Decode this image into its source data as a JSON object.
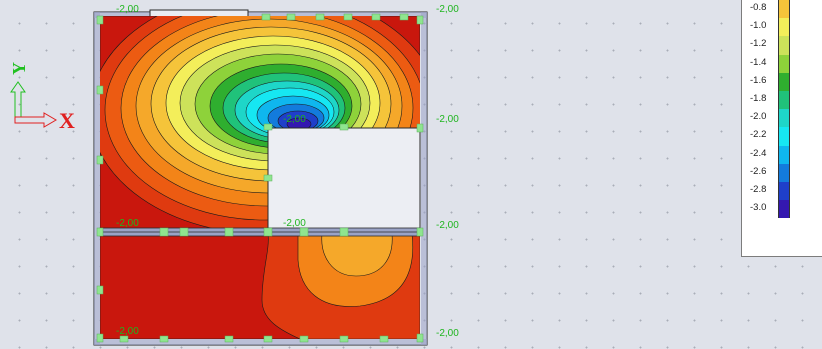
{
  "colors": {
    "background": "#dfe2ea",
    "slab_outline": "#2a2a2a",
    "support_marker": "#8fe58f",
    "dimension_text": "#1fb51f",
    "axis_x": "#e02020",
    "axis_y": "#20c020"
  },
  "axes": {
    "x_label": "X",
    "y_label": "Y"
  },
  "dimensions": {
    "top_left": "-2,00",
    "right_1": "-2,00",
    "right_2": "-2,00",
    "right_3": "-2,00",
    "right_4": "-2,00",
    "inner_top": "-2,00",
    "mid_left": "-2,00",
    "mid_center": "-2,00",
    "bottom_left": "-2,00"
  },
  "legend": {
    "items": [
      {
        "label": "-0.8",
        "color": "#f5c43a"
      },
      {
        "label": "-1.0",
        "color": "#f3ee5a"
      },
      {
        "label": "-1.2",
        "color": "#cde25a"
      },
      {
        "label": "-1.4",
        "color": "#8ed23a"
      },
      {
        "label": "-1.6",
        "color": "#2fae2f"
      },
      {
        "label": "-1.8",
        "color": "#20c27a"
      },
      {
        "label": "-2.0",
        "color": "#1ed6c8"
      },
      {
        "label": "-2.2",
        "color": "#16e7f2"
      },
      {
        "label": "-2.4",
        "color": "#0fb7ee"
      },
      {
        "label": "-2.6",
        "color": "#137bdc"
      },
      {
        "label": "-2.8",
        "color": "#1f3fca"
      },
      {
        "label": "-3.0",
        "color": "#3418b0"
      }
    ]
  }
}
